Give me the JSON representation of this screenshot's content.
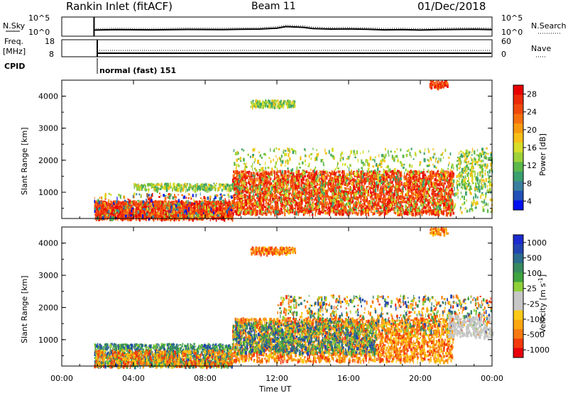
{
  "header": {
    "site": "Rankin Inlet (fitACF)",
    "beam": "Beam 11",
    "date": "01/Dec/2018"
  },
  "top_panels": {
    "nsky_label": "N.Sky",
    "nsky_ticks": [
      "10^5",
      "10^0"
    ],
    "nsearch_ticks": [
      "10^5",
      "10^0"
    ],
    "nsearch_label": "N.Search",
    "freq_label_1": "Freq.",
    "freq_label_2": "[MHz]",
    "freq_ticks": [
      "18",
      "8"
    ],
    "nave_ticks": [
      "60",
      "0"
    ],
    "nave_label": "Nave",
    "cpid_label": "CPID",
    "cpid_text": "normal (fast) 151"
  },
  "colors": {
    "velocity_scale": [
      "#e8000b",
      "#f23a0c",
      "#f77a10",
      "#fba70f",
      "#fcca16",
      "#c7c7c7",
      "#c7c7c7",
      "#90d03a",
      "#3fa540",
      "#388a5f",
      "#2c6c8c",
      "#2345b0",
      "#1c2bd0"
    ],
    "power_scale": [
      "#0010f0",
      "#2050b8",
      "#3a7fa0",
      "#3aa070",
      "#5cb84a",
      "#9ed23a",
      "#d6de2a",
      "#f6c018",
      "#f89a10",
      "#f77010",
      "#f04a0c",
      "#ec2a08",
      "#e80000"
    ]
  },
  "chart_data": [
    {
      "type": "line",
      "panel": "N.Sky / N.Search",
      "x_ticks": [
        "00:00",
        "04:00",
        "08:00",
        "12:00",
        "16:00",
        "20:00",
        "00:00"
      ],
      "series": [
        {
          "x": [
            1.8,
            3,
            5,
            7,
            9,
            10,
            11,
            12,
            12.5,
            13,
            13.5,
            14,
            15,
            16,
            17,
            18,
            19,
            20,
            21,
            22,
            23,
            24
          ],
          "y": [
            0.32,
            0.34,
            0.33,
            0.35,
            0.34,
            0.36,
            0.37,
            0.42,
            0.5,
            0.48,
            0.46,
            0.4,
            0.37,
            0.38,
            0.36,
            0.33,
            0.34,
            0.32,
            0.34,
            0.35,
            0.36,
            0.34
          ]
        }
      ]
    },
    {
      "type": "line",
      "panel": "Freq. / Nave",
      "series": [
        {
          "x": [
            1.8,
            24
          ],
          "y": [
            10.3,
            10.3
          ],
          "style": "solid"
        },
        {
          "x": [
            1.8,
            24
          ],
          "y": [
            12.2,
            12.2
          ],
          "style": "dotted"
        }
      ]
    },
    {
      "type": "heatmap",
      "panel": "Power",
      "ylabel": "Slant Range [km]",
      "y_ticks": [
        "1000",
        "2000",
        "3000",
        "4000"
      ],
      "ylim": [
        180,
        4500
      ],
      "xlim": [
        0,
        24
      ],
      "colorbar_title": "Power [dB]",
      "colorbar_ticks": [
        "28",
        "24",
        "20",
        "16",
        "12",
        "8",
        "4"
      ],
      "note_regions": [
        {
          "t": [
            1.8,
            9.5
          ],
          "r": [
            200,
            800
          ],
          "level": "high"
        },
        {
          "t": [
            9.5,
            21.8
          ],
          "r": [
            300,
            1700
          ],
          "level": "high"
        },
        {
          "t": [
            10,
            18
          ],
          "r": [
            1800,
            2500
          ],
          "level": "mid"
        }
      ]
    },
    {
      "type": "heatmap",
      "panel": "Velocity",
      "ylabel": "Slant Range [km]",
      "y_ticks": [
        "1000",
        "2000",
        "3000",
        "4000"
      ],
      "ylim": [
        180,
        4500
      ],
      "xlim": [
        0,
        24
      ],
      "xlabel": "Time UT",
      "x_ticks": [
        "00:00",
        "04:00",
        "08:00",
        "12:00",
        "16:00",
        "20:00",
        "00:00"
      ],
      "colorbar_title": "Velocity [m s",
      "colorbar_sup": "-1",
      "colorbar_close": "]",
      "colorbar_ticks": [
        "1000",
        "500",
        "100",
        "25",
        "-25",
        "-100",
        "-500",
        "-1000"
      ]
    }
  ]
}
